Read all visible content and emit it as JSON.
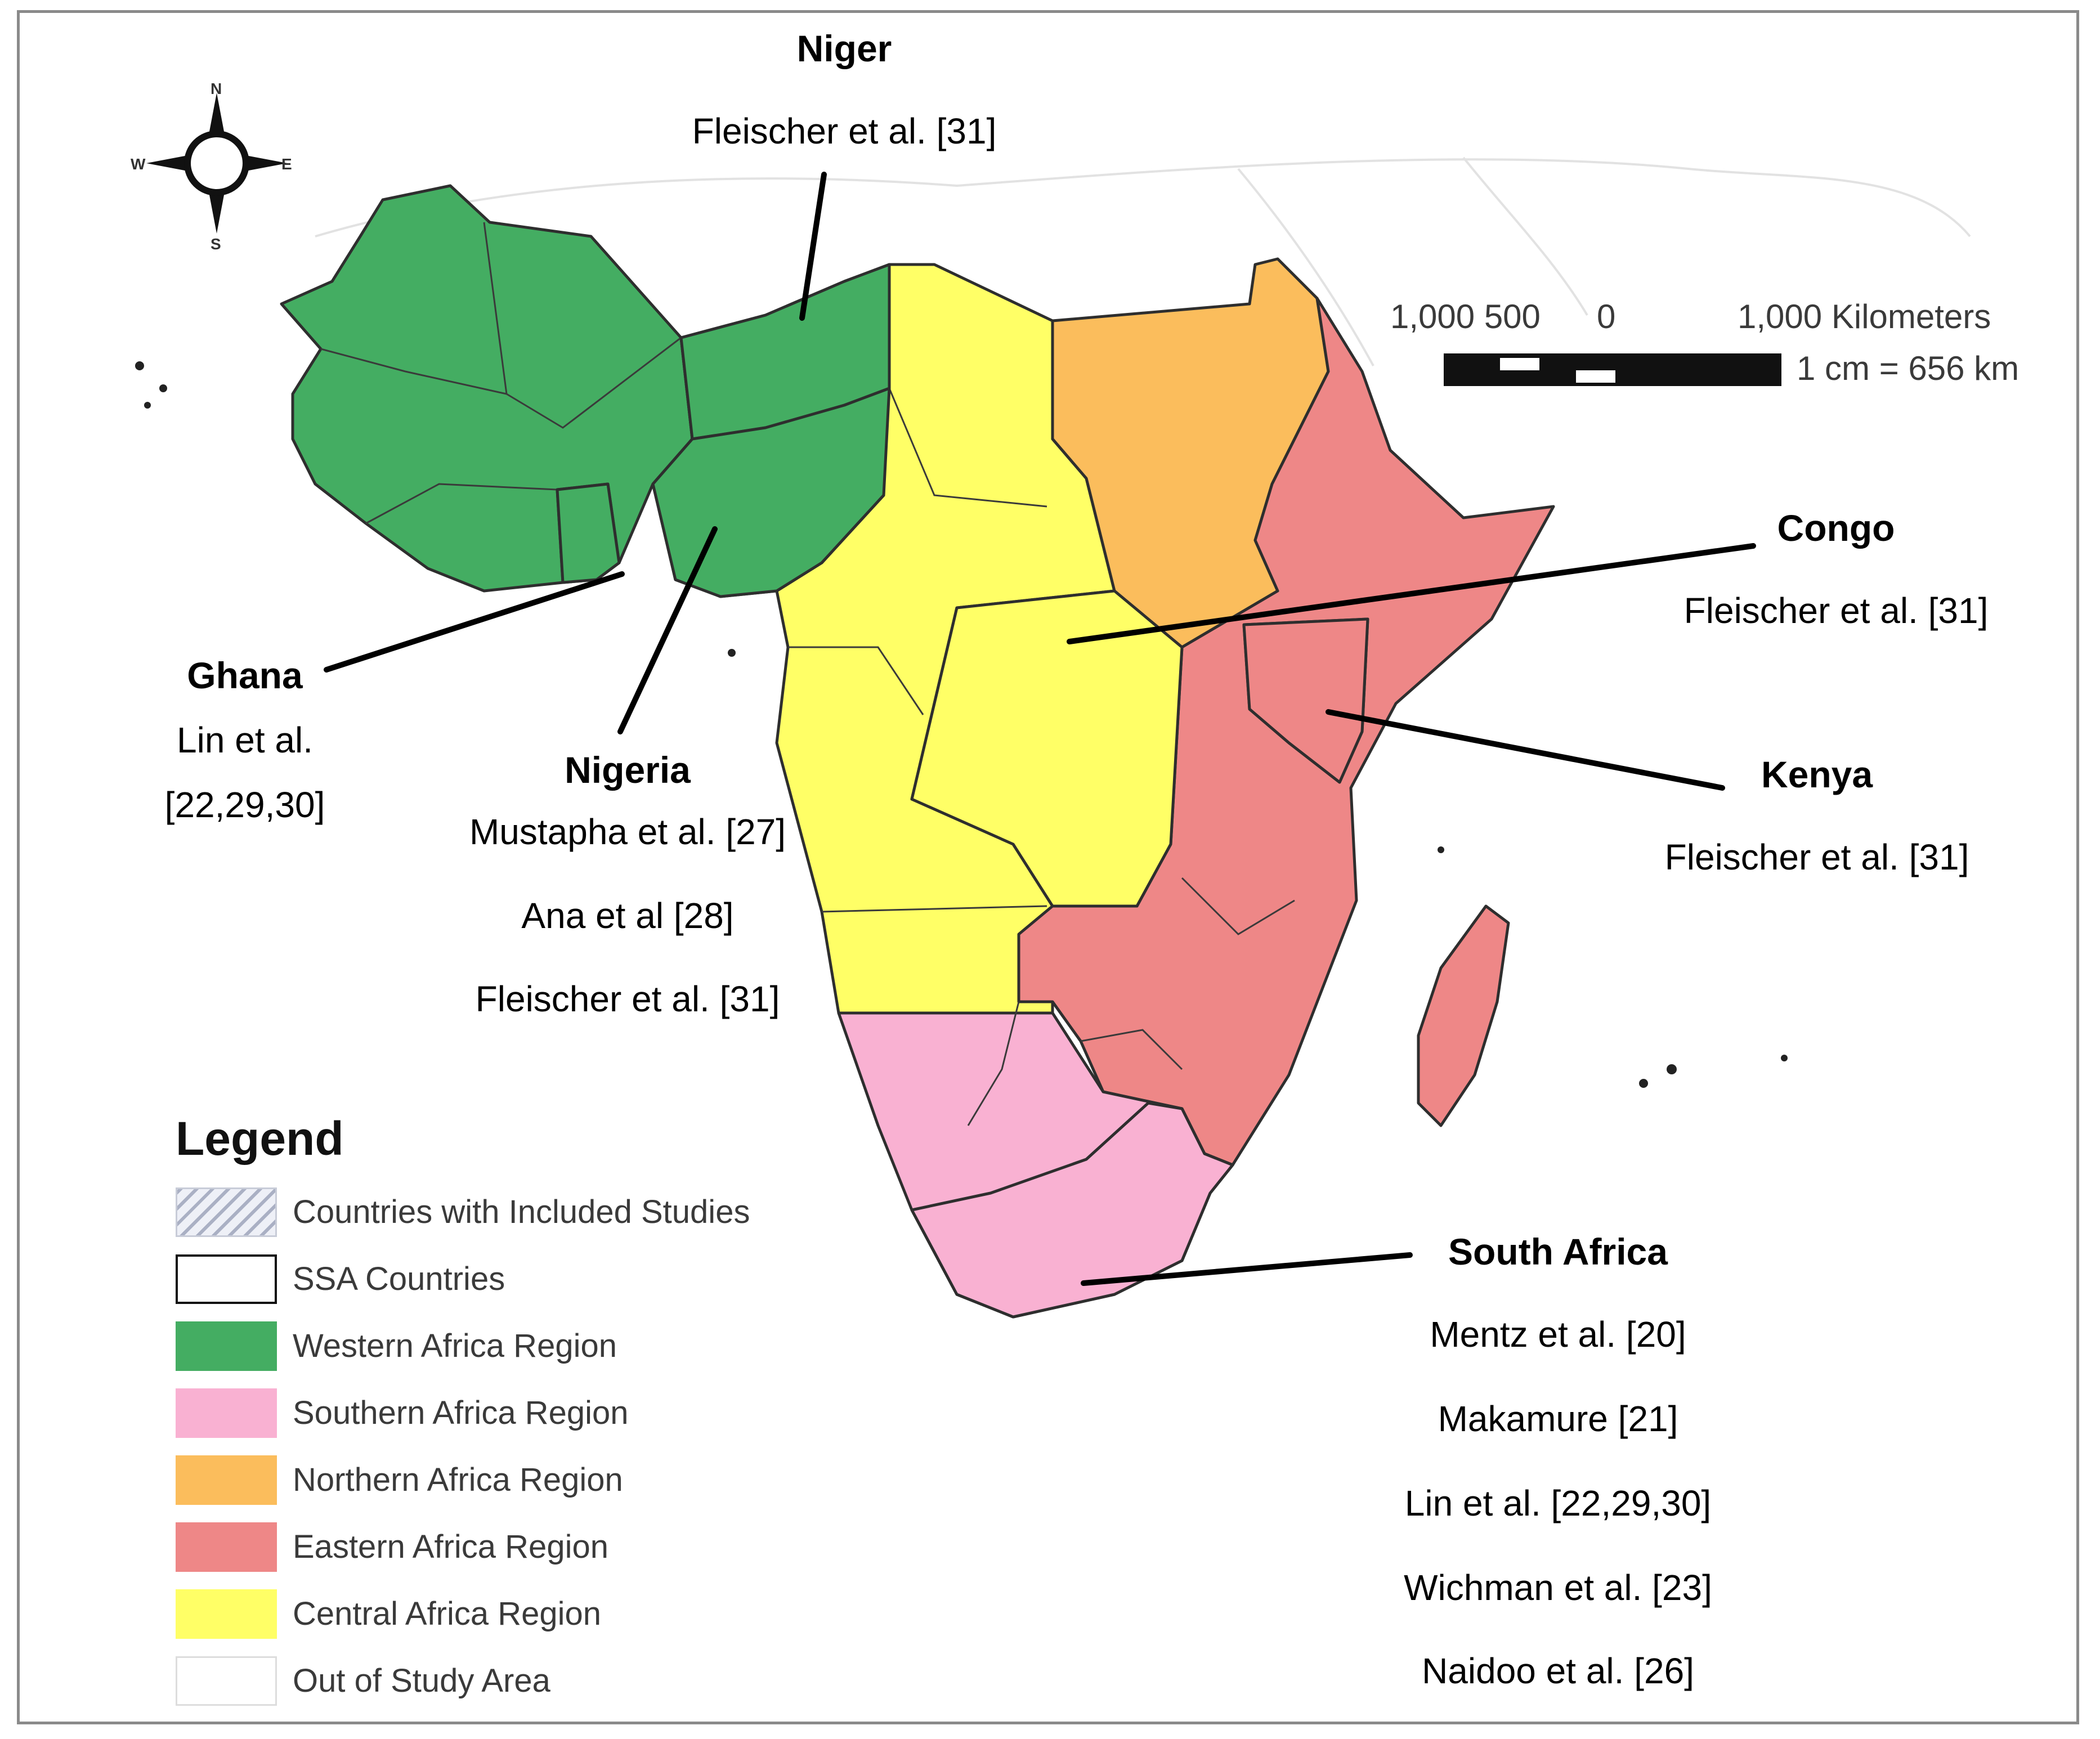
{
  "compass": {
    "north": "N",
    "south": "S",
    "east": "E",
    "west": "W"
  },
  "scale_bar": {
    "labels": "1,000 500      0             1,000 Kilometers",
    "ratio": "1 cm = 656 km"
  },
  "legend": {
    "title": "Legend",
    "items": [
      {
        "label": "Countries with Included Studies",
        "style": "hatched",
        "color": "#eef0f7"
      },
      {
        "label": "SSA Countries",
        "style": "outline",
        "color": "#ffffff"
      },
      {
        "label": "Western Africa Region",
        "style": "fill",
        "color": "#44ad62"
      },
      {
        "label": "Southern Africa Region",
        "style": "fill",
        "color": "#f9b1d2"
      },
      {
        "label": "Northern Africa Region",
        "style": "fill",
        "color": "#fbbd5c"
      },
      {
        "label": "Eastern Africa Region",
        "style": "fill",
        "color": "#ee8787"
      },
      {
        "label": "Central Africa Region",
        "style": "fill",
        "color": "#ffff66"
      },
      {
        "label": "Out of Study Area",
        "style": "outline-light",
        "color": "#ffffff"
      }
    ]
  },
  "regions": {
    "western": {
      "color": "#44ad62"
    },
    "southern": {
      "color": "#f9b1d2"
    },
    "northern": {
      "color": "#fbbd5c"
    },
    "eastern": {
      "color": "#ee8787"
    },
    "central": {
      "color": "#ffff66"
    }
  },
  "annotations": {
    "niger": {
      "name": "Niger",
      "citations": [
        "Fleischer et al. [31]"
      ]
    },
    "ghana": {
      "name": "Ghana",
      "citations": [
        "Lin et al.",
        "[22,29,30]"
      ]
    },
    "nigeria": {
      "name": "Nigeria",
      "citations": [
        "Mustapha et al. [27]",
        "Ana et al [28]",
        "Fleischer et al. [31]"
      ]
    },
    "congo": {
      "name": "Congo",
      "citations": [
        "Fleischer et al. [31]"
      ]
    },
    "kenya": {
      "name": "Kenya",
      "citations": [
        "Fleischer et al. [31]"
      ]
    },
    "south_africa": {
      "name": "South Africa",
      "citations": [
        "Mentz et al. [20]",
        "Makamure [21]",
        "Lin et al. [22,29,30]",
        "Wichman et al. [23]",
        "Naidoo et al. [26]"
      ]
    }
  }
}
